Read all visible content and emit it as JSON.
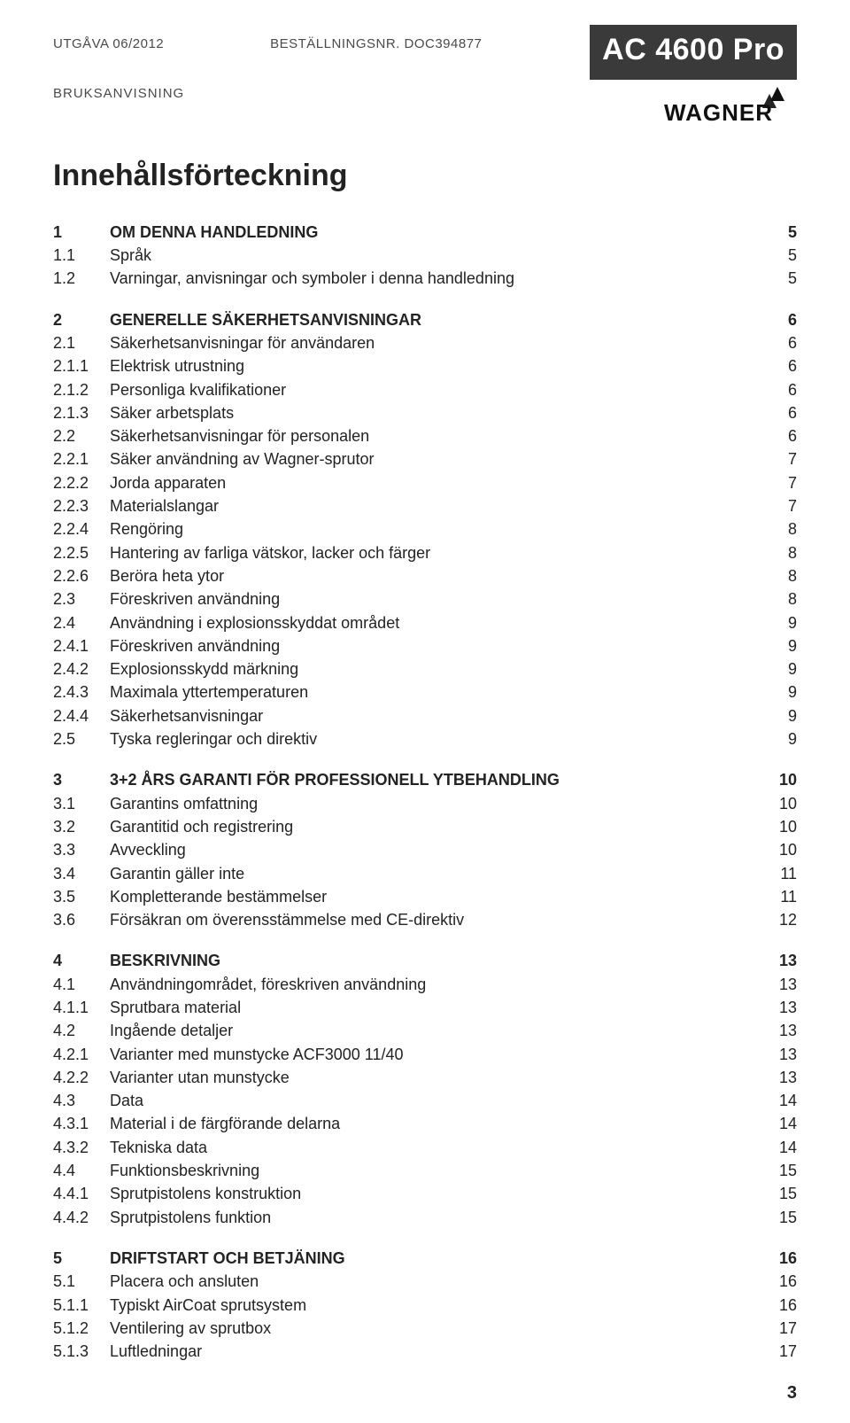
{
  "header": {
    "edition": "UTGÅVA 06/2012",
    "order_no": "BESTÄLLNINGSNR. DOC394877",
    "product": "AC 4600 Pro",
    "manual_label": "BRUKSANVISNING",
    "brand": "WAGNER"
  },
  "toc_title": "Innehållsförteckning",
  "sections": [
    {
      "rows": [
        {
          "num": "1",
          "label": "OM DENNA HANDLEDNING",
          "page": "5",
          "bold": true
        },
        {
          "num": "1.1",
          "label": "Språk",
          "page": "5"
        },
        {
          "num": "1.2",
          "label": "Varningar, anvisningar och symboler i denna handledning",
          "page": "5"
        }
      ]
    },
    {
      "rows": [
        {
          "num": "2",
          "label": "GENERELLE SÄKERHETSANVISNINGAR",
          "page": "6",
          "bold": true
        },
        {
          "num": "2.1",
          "label": "Säkerhetsanvisningar för användaren",
          "page": "6"
        },
        {
          "num": "2.1.1",
          "label": "Elektrisk utrustning",
          "page": "6"
        },
        {
          "num": "2.1.2",
          "label": "Personliga kvalifikationer",
          "page": "6"
        },
        {
          "num": "2.1.3",
          "label": "Säker arbetsplats",
          "page": "6"
        },
        {
          "num": "2.2",
          "label": "Säkerhetsanvisningar för personalen",
          "page": "6"
        },
        {
          "num": "2.2.1",
          "label": "Säker användning av Wagner-sprutor",
          "page": "7"
        },
        {
          "num": "2.2.2",
          "label": "Jorda apparaten",
          "page": "7"
        },
        {
          "num": "2.2.3",
          "label": "Materialslangar",
          "page": "7"
        },
        {
          "num": "2.2.4",
          "label": "Rengöring",
          "page": "8"
        },
        {
          "num": "2.2.5",
          "label": "Hantering av farliga vätskor, lacker och färger",
          "page": "8"
        },
        {
          "num": "2.2.6",
          "label": "Beröra heta ytor",
          "page": "8"
        },
        {
          "num": "2.3",
          "label": "Föreskriven användning",
          "page": "8"
        },
        {
          "num": "2.4",
          "label": "Användning i explosionsskyddat området",
          "page": "9"
        },
        {
          "num": "2.4.1",
          "label": "Föreskriven användning",
          "page": "9"
        },
        {
          "num": "2.4.2",
          "label": "Explosionsskydd märkning",
          "page": "9"
        },
        {
          "num": "2.4.3",
          "label": "Maximala yttertemperaturen",
          "page": "9"
        },
        {
          "num": "2.4.4",
          "label": "Säkerhetsanvisningar",
          "page": "9"
        },
        {
          "num": "2.5",
          "label": "Tyska regleringar och direktiv",
          "page": "9"
        }
      ]
    },
    {
      "rows": [
        {
          "num": "3",
          "label": "3+2 ÅRS GARANTI FÖR PROFESSIONELL YTBEHANDLING",
          "page": "10",
          "bold": true
        },
        {
          "num": "3.1",
          "label": "Garantins omfattning",
          "page": "10"
        },
        {
          "num": "3.2",
          "label": "Garantitid och registrering",
          "page": "10"
        },
        {
          "num": "3.3",
          "label": "Avveckling",
          "page": "10"
        },
        {
          "num": "3.4",
          "label": "Garantin gäller inte",
          "page": "11"
        },
        {
          "num": "3.5",
          "label": "Kompletterande bestämmelser",
          "page": "11"
        },
        {
          "num": "3.6",
          "label": "Försäkran om överensstämmelse med CE-direktiv",
          "page": "12"
        }
      ]
    },
    {
      "rows": [
        {
          "num": "4",
          "label": "BESKRIVNING",
          "page": "13",
          "bold": true
        },
        {
          "num": "4.1",
          "label": "Användningområdet, föreskriven användning",
          "page": "13"
        },
        {
          "num": "4.1.1",
          "label": "Sprutbara material",
          "page": "13"
        },
        {
          "num": "4.2",
          "label": "Ingående detaljer",
          "page": "13"
        },
        {
          "num": "4.2.1",
          "label": "Varianter med munstycke ACF3000 11/40",
          "page": "13"
        },
        {
          "num": "4.2.2",
          "label": "Varianter utan munstycke",
          "page": "13"
        },
        {
          "num": "4.3",
          "label": "Data",
          "page": "14"
        },
        {
          "num": "4.3.1",
          "label": "Material i de färgförande delarna",
          "page": "14"
        },
        {
          "num": "4.3.2",
          "label": "Tekniska data",
          "page": "14"
        },
        {
          "num": "4.4",
          "label": "Funktionsbeskrivning",
          "page": "15"
        },
        {
          "num": "4.4.1",
          "label": "Sprutpistolens konstruktion",
          "page": "15"
        },
        {
          "num": "4.4.2",
          "label": "Sprutpistolens funktion",
          "page": "15"
        }
      ]
    },
    {
      "rows": [
        {
          "num": "5",
          "label": "DRIFTSTART OCH BETJÄNING",
          "page": "16",
          "bold": true
        },
        {
          "num": "5.1",
          "label": "Placera och ansluten",
          "page": "16"
        },
        {
          "num": "5.1.1",
          "label": "Typiskt AirCoat sprutsystem",
          "page": "16"
        },
        {
          "num": "5.1.2",
          "label": "Ventilering av sprutbox",
          "page": "17"
        },
        {
          "num": "5.1.3",
          "label": "Luftledningar",
          "page": "17"
        }
      ]
    }
  ],
  "footer_page": "3"
}
